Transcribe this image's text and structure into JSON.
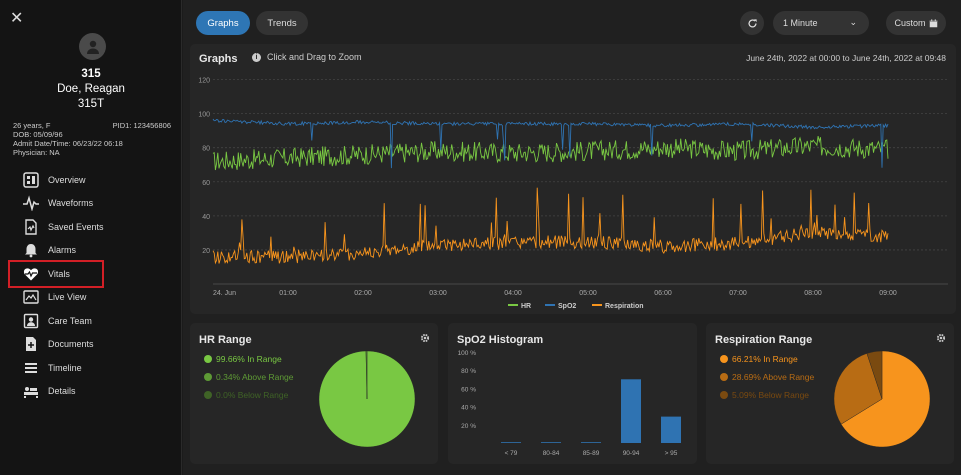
{
  "sidebar": {
    "patient": {
      "room": "315",
      "name": "Doe, Reagan",
      "bed": "315T",
      "age_sex": "26 years, F",
      "pid": "PID1: 123456806",
      "dob": "DOB: 05/09/96",
      "admit": "Admit Date/Time: 06/23/22 06:18",
      "physician": "Physician: NA"
    },
    "items": [
      {
        "label": "Overview",
        "icon": "overview-icon"
      },
      {
        "label": "Waveforms",
        "icon": "waveform-icon"
      },
      {
        "label": "Saved Events",
        "icon": "saved-events-icon"
      },
      {
        "label": "Alarms",
        "icon": "alarm-bell-icon"
      },
      {
        "label": "Vitals",
        "icon": "heart-pulse-icon",
        "active": true
      },
      {
        "label": "Live View",
        "icon": "live-view-icon"
      },
      {
        "label": "Care Team",
        "icon": "care-team-icon"
      },
      {
        "label": "Documents",
        "icon": "document-icon"
      },
      {
        "label": "Timeline",
        "icon": "timeline-icon"
      },
      {
        "label": "Details",
        "icon": "details-icon"
      }
    ]
  },
  "toolbar": {
    "tabs": [
      "Graphs",
      "Trends"
    ],
    "interval": "1 Minute",
    "custom": "Custom"
  },
  "graphs": {
    "title": "Graphs",
    "hint": "Click and Drag to Zoom",
    "date_range": "June 24th, 2022 at 00:00 to June 24th, 2022 at 09:48"
  },
  "chart_data": [
    {
      "type": "line",
      "title": "Graphs",
      "x": [
        "24. Jun",
        "01:00",
        "02:00",
        "03:00",
        "04:00",
        "05:00",
        "06:00",
        "07:00",
        "08:00",
        "09:00"
      ],
      "yticks": [
        20,
        40,
        60,
        80,
        100,
        120
      ],
      "ylim": [
        0,
        125
      ],
      "grid": true,
      "legend": "bottom",
      "series": [
        {
          "name": "HR",
          "color": "#79c843",
          "values": [
            72,
            74,
            76,
            78,
            77,
            78,
            80,
            78,
            81,
            79
          ]
        },
        {
          "name": "SpO2",
          "color": "#2f73b2",
          "values": [
            96,
            94,
            95,
            94,
            94,
            94,
            93,
            94,
            92,
            93
          ]
        },
        {
          "name": "Respiration",
          "color": "#f7941d",
          "values": [
            16,
            16,
            18,
            23,
            24,
            25,
            22,
            24,
            30,
            28
          ]
        }
      ]
    },
    {
      "type": "pie",
      "title": "HR Range",
      "slices": [
        {
          "label": "In Range",
          "value": 99.66,
          "color": "#79c843"
        },
        {
          "label": "Above Range",
          "value": 0.34,
          "color": "#5e9a35"
        },
        {
          "label": "Below Range",
          "value": 0.0,
          "color": "#3f6326"
        }
      ]
    },
    {
      "type": "bar",
      "title": "SpO2 Histogram",
      "categories": [
        "< 79",
        "80-84",
        "85-89",
        "90-94",
        "> 95"
      ],
      "values": [
        0.3,
        0,
        0.3,
        70,
        29
      ],
      "yticks": [
        "20 %",
        "40 %",
        "60 %",
        "80 %",
        "100 %"
      ],
      "ylim": [
        0,
        100
      ],
      "color": "#2f73b2"
    },
    {
      "type": "pie",
      "title": "Respiration Range",
      "slices": [
        {
          "label": "In Range",
          "value": 66.21,
          "color": "#f7941d"
        },
        {
          "label": "Above Range",
          "value": 28.69,
          "color": "#b86c14"
        },
        {
          "label": "Below Range",
          "value": 5.09,
          "color": "#7a4a10"
        }
      ]
    }
  ],
  "hr_range": {
    "title": "HR Range",
    "in": "99.66% In Range",
    "above": "0.34% Above Range",
    "below": "0.0% Below Range"
  },
  "spo2_hist": {
    "title": "SpO2 Histogram"
  },
  "resp_range": {
    "title": "Respiration Range",
    "in": "66.21% In Range",
    "above": "28.69% Above Range",
    "below": "5.09% Below Range"
  },
  "colors": {
    "accent": "#2e76b5",
    "hr": "#79c843",
    "spo2": "#2f73b2",
    "resp": "#f7941d",
    "active_outline": "#d21f26"
  }
}
